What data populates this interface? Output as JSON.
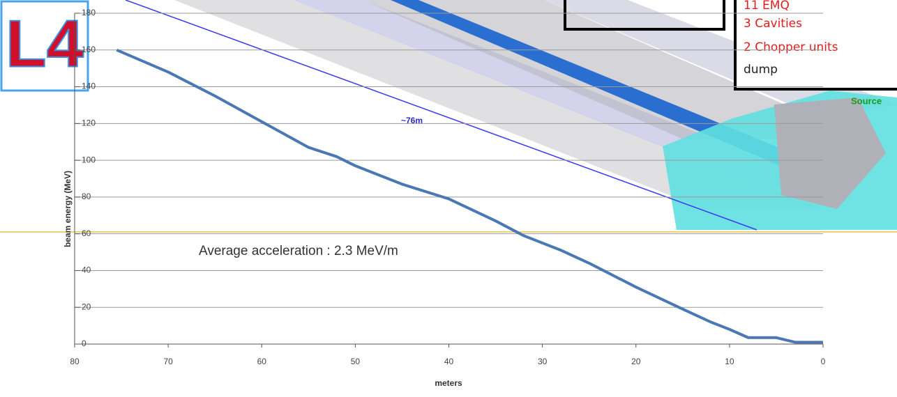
{
  "chart_data": {
    "type": "line",
    "x_label": "meters",
    "y_label": "beam energy (MeV)",
    "xlim": [
      80,
      0
    ],
    "xticks": [
      80,
      70,
      60,
      50,
      40,
      30,
      20,
      10,
      0
    ],
    "ylim": [
      0,
      180
    ],
    "yticks": [
      0,
      20,
      40,
      60,
      80,
      100,
      120,
      140,
      160,
      180
    ],
    "grid": true,
    "series": [
      {
        "color": "#4a78b5",
        "x": [
          75.5,
          70,
          65,
          60,
          55,
          52,
          50,
          45,
          40,
          35,
          32,
          28,
          25,
          20,
          15,
          12,
          10,
          8,
          5,
          3,
          0
        ],
        "values": [
          160,
          148,
          135,
          121,
          107,
          102,
          97,
          87,
          79,
          67,
          59,
          51,
          44,
          31,
          19,
          12,
          8,
          3.5,
          3.5,
          1,
          1
        ]
      }
    ],
    "annotations": [
      "Average acceleration : 2.3 MeV/m",
      "~76m",
      "Source"
    ],
    "box_items": [
      "11 EMQ",
      "3 Cavities",
      "2 Chopper units",
      "dump"
    ],
    "logo": "L4"
  }
}
